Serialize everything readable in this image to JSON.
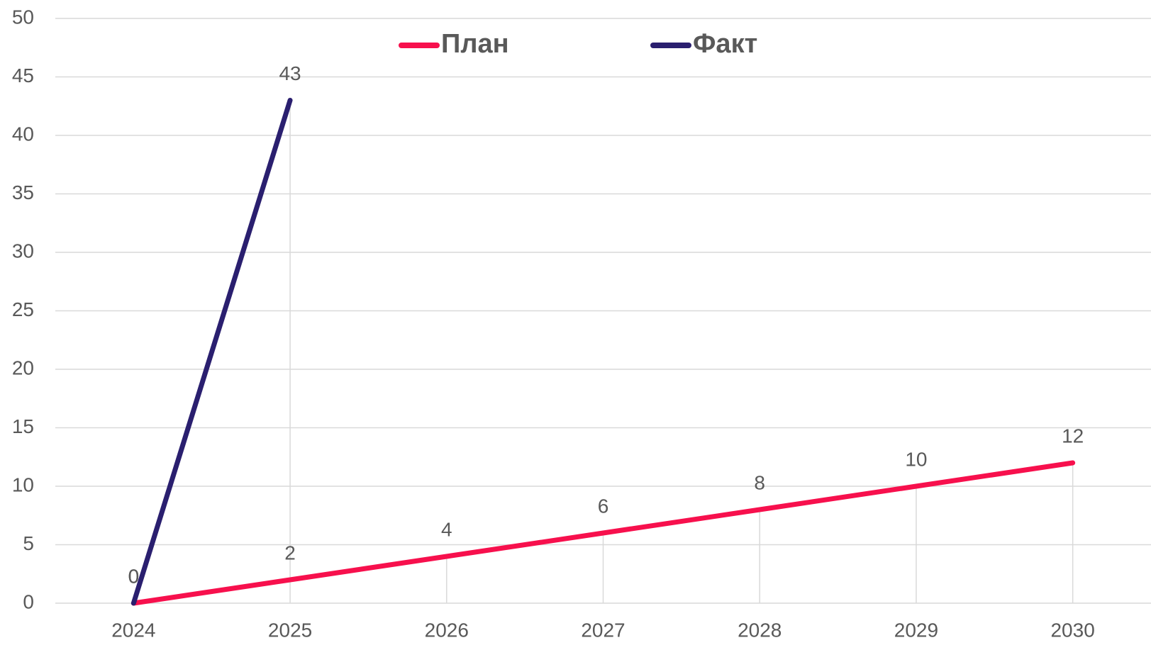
{
  "chart_data": {
    "type": "line",
    "categories": [
      "2024",
      "2025",
      "2026",
      "2027",
      "2028",
      "2029",
      "2030"
    ],
    "series": [
      {
        "name": "План",
        "color": "#f7104d",
        "values": [
          0,
          2,
          4,
          6,
          8,
          10,
          12
        ]
      },
      {
        "name": "Факт",
        "color": "#2a1f6f",
        "values": [
          0,
          43,
          null,
          null,
          null,
          null,
          null
        ]
      }
    ],
    "ylim": [
      0,
      50
    ],
    "yticks": [
      0,
      5,
      10,
      15,
      20,
      25,
      30,
      35,
      40,
      45,
      50
    ],
    "grid": true,
    "legend": "top",
    "data_labels": true
  }
}
